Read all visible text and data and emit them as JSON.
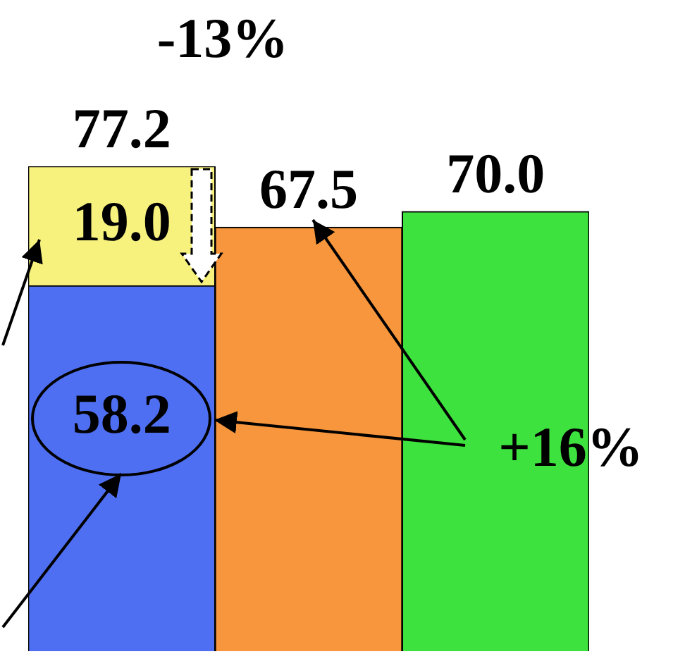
{
  "chart_data": {
    "type": "bar",
    "categories": [
      null,
      null,
      null
    ],
    "stacked": true,
    "series": [
      {
        "colors": [
          "#4f6ff2",
          "#f7963c",
          "#3ee23e"
        ],
        "values": [
          58.2,
          67.5,
          70.0
        ],
        "value_labels": [
          "58.2",
          "67.5",
          "70.0"
        ]
      },
      {
        "color": "#f7f27e",
        "values": [
          19.0,
          null,
          null
        ],
        "value_labels": [
          "19.0",
          null,
          null
        ]
      }
    ],
    "totals": [
      "77.2",
      null,
      null
    ],
    "annotations": [
      "-13%",
      "+16%"
    ]
  }
}
